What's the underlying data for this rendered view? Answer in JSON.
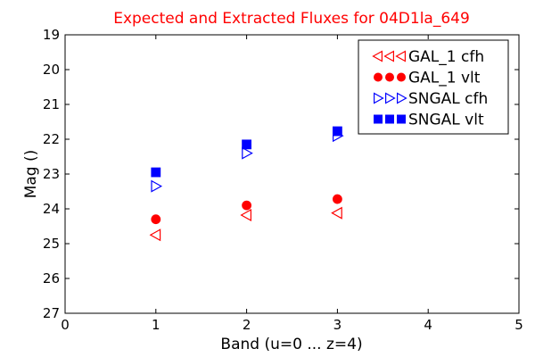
{
  "chart_data": {
    "type": "scatter",
    "title": "Expected and Extracted Fluxes for 04D1la_649",
    "title_color": "#ff0000",
    "xlabel": "Band (u=0 ... z=4)",
    "ylabel": "Mag ()",
    "xlim": [
      0,
      5
    ],
    "ylim": [
      27,
      19
    ],
    "y_inverted": true,
    "x_ticks": [
      0,
      1,
      2,
      3,
      4,
      5
    ],
    "y_ticks": [
      19,
      20,
      21,
      22,
      23,
      24,
      25,
      26,
      27
    ],
    "grid": false,
    "legend_position": "top-right",
    "series": [
      {
        "name": "GAL_1 cfh",
        "marker": "triangle-left",
        "filled": false,
        "color": "#ff0000",
        "x": [
          1,
          2,
          3
        ],
        "y": [
          24.75,
          24.18,
          24.12
        ]
      },
      {
        "name": "GAL_1 vlt",
        "marker": "circle",
        "filled": true,
        "color": "#ff0000",
        "x": [
          1,
          2,
          3
        ],
        "y": [
          24.3,
          23.9,
          23.72
        ]
      },
      {
        "name": "SNGAL cfh",
        "marker": "triangle-right",
        "filled": false,
        "color": "#0000ff",
        "x": [
          1,
          2,
          3
        ],
        "y": [
          23.35,
          22.4,
          21.9
        ]
      },
      {
        "name": "SNGAL vlt",
        "marker": "square",
        "filled": true,
        "color": "#0000ff",
        "x": [
          1,
          2,
          3
        ],
        "y": [
          22.95,
          22.15,
          21.77
        ]
      }
    ]
  }
}
